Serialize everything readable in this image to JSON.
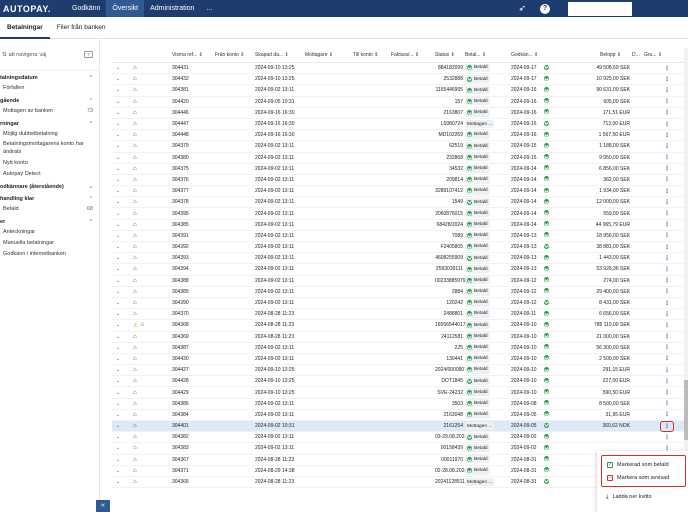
{
  "app": {
    "brand": "AUTOPAY."
  },
  "nav": {
    "tabs": [
      "Godkänn",
      "Översikt",
      "Administration",
      "..."
    ],
    "active_index": 1
  },
  "subnav": {
    "tabs": [
      "Betalningar",
      "Filer från banken"
    ],
    "active_index": 0
  },
  "sidebar": {
    "top_label": "att navigera",
    "top_suffix": "väj",
    "top_pill": "?",
    "sections": [
      {
        "title": "talningsdatum",
        "items": [
          {
            "label": "Förfallen",
            "count": ""
          }
        ]
      },
      {
        "title": "gående",
        "items": [
          {
            "label": "Mottagen av banken",
            "count": "73"
          }
        ]
      },
      {
        "title": "rningar",
        "items": [
          {
            "label": "Möjlig dubbelbetalning",
            "count": ""
          },
          {
            "label": "Betalningsmottagarens konto har ändrats",
            "count": ""
          },
          {
            "label": "Nytt konto",
            "count": ""
          },
          {
            "label": "Autopay Detect",
            "count": ""
          }
        ]
      },
      {
        "title": "odkännare (återstående)",
        "items": []
      },
      {
        "title": "handling klar",
        "items": [
          {
            "label": "Betald",
            "count": "68"
          }
        ]
      },
      {
        "title": "er",
        "items": [
          {
            "label": "Anteckningar",
            "count": ""
          },
          {
            "label": "Manuella betalningar",
            "count": ""
          },
          {
            "label": "Godkänn i internetbanken",
            "count": ""
          }
        ]
      }
    ],
    "collapse_glyph": "«"
  },
  "table": {
    "headers": [
      "Visma ref...",
      "Från konto",
      "Skapad da...",
      "Mottagare",
      "Till konto",
      "Faktura/...",
      "Status",
      "Betal...",
      "Godkän...",
      "Belopp",
      "D...",
      "Gru..."
    ],
    "rows": [
      {
        "ref": "304431",
        "created": "2024-09-10 13:25",
        "invoice": "884182099",
        "status": "Betald",
        "approved": "2024-09-17",
        "amount": "49 508,69 SEK"
      },
      {
        "ref": "304432",
        "created": "2024-09-10 13:25",
        "invoice": "2532888",
        "status": "Betald",
        "approved": "2024-09-17",
        "amount": "10 925,00 SEK"
      },
      {
        "ref": "304381",
        "created": "2024-09-02 13:11",
        "invoice": "1165446905",
        "status": "Betald",
        "approved": "2024-09-16",
        "amount": "90 631,00 SEK"
      },
      {
        "ref": "304420",
        "created": "2024-09-05 10:31",
        "invoice": "157",
        "status": "Betald",
        "approved": "2024-09-16",
        "amount": "605,00 SEK"
      },
      {
        "ref": "304446",
        "created": "2024-09-16 16:30",
        "invoice": "2163807",
        "status": "Betald",
        "approved": "2024-09-16",
        "amount": "171,51 EUR"
      },
      {
        "ref": "304447",
        "created": "2024-09-16 16:30",
        "invoice": "L5980724",
        "status": "Mottagen ...",
        "approved": "2024-09-16",
        "amount": "713,00 EUR"
      },
      {
        "ref": "304448",
        "created": "2024-09-16 16:30",
        "invoice": "MD102269",
        "status": "Betald",
        "approved": "2024-09-16",
        "amount": "1 567,50 EUR"
      },
      {
        "ref": "304379",
        "created": "2024-09-02 13:11",
        "invoice": "62519",
        "status": "Betald",
        "approved": "2024-09-15",
        "amount": "1 188,00 SEK"
      },
      {
        "ref": "304380",
        "created": "2024-09-02 13:11",
        "invoice": "232868",
        "status": "Betald",
        "approved": "2024-09-15",
        "amount": "9 950,00 SEK"
      },
      {
        "ref": "304375",
        "created": "2024-09-02 13:11",
        "invoice": "34532",
        "status": "Betald",
        "approved": "2024-09-14",
        "amount": "6 856,00 SEK"
      },
      {
        "ref": "304376",
        "created": "2024-09-02 13:11",
        "invoice": "209814",
        "status": "Betald",
        "approved": "2024-09-14",
        "amount": "362,00 SEK"
      },
      {
        "ref": "304377",
        "created": "2024-09-02 13:11",
        "invoice": "3289107412",
        "status": "Betald",
        "approved": "2024-09-14",
        "amount": "1 934,00 SEK"
      },
      {
        "ref": "304378",
        "created": "2024-09-02 13:11",
        "invoice": "1549",
        "status": "Betald",
        "approved": "2024-09-14",
        "amount": "12 000,00 SEK"
      },
      {
        "ref": "304395",
        "created": "2024-09-02 13:11",
        "invoice": "2060876015",
        "status": "Betald",
        "approved": "2024-09-14",
        "amount": "559,00 SEK"
      },
      {
        "ref": "304385",
        "created": "2024-09-02 13:11",
        "invoice": "68428/2024",
        "status": "Betald",
        "approved": "2024-09-14",
        "amount": "44 965,79 EUR"
      },
      {
        "ref": "304391",
        "created": "2024-09-02 13:11",
        "invoice": "7089",
        "status": "Betald",
        "approved": "2024-09-13",
        "amount": "18 956,00 SEK"
      },
      {
        "ref": "304392",
        "created": "2024-09-02 13:11",
        "invoice": "F2405805",
        "status": "Betald",
        "approved": "2024-09-13",
        "amount": "38 881,00 SEK"
      },
      {
        "ref": "304393",
        "created": "2024-09-02 13:11",
        "invoice": "4608255909",
        "status": "Betald",
        "approved": "2024-09-13",
        "amount": "1 443,00 SEK"
      },
      {
        "ref": "304394",
        "created": "2024-09-02 13:11",
        "invoice": "2593039111",
        "status": "Betald",
        "approved": "2024-09-13",
        "amount": "53 926,36 SEK"
      },
      {
        "ref": "304388",
        "created": "2024-09-02 13:11",
        "invoice": "00233885979",
        "status": "Betald",
        "approved": "2024-09-12",
        "amount": "274,00 SEK"
      },
      {
        "ref": "304389",
        "created": "2024-09-02 13:11",
        "invoice": "2884",
        "status": "Betald",
        "approved": "2024-09-12",
        "amount": "29 400,00 SEK"
      },
      {
        "ref": "304390",
        "created": "2024-09-02 13:11",
        "invoice": "120242",
        "status": "Betald",
        "approved": "2024-09-12",
        "amount": "8 431,00 SEK"
      },
      {
        "ref": "304370",
        "created": "2024-08-28 11:23",
        "invoice": "2488801",
        "status": "Betald",
        "approved": "2024-09-11",
        "amount": "6 656,00 SEK"
      },
      {
        "ref": "304368",
        "created": "2024-08-28 11:23",
        "invoice": "1655654401785",
        "status": "Betald",
        "approved": "2024-09-10",
        "amount": "785 119,00 SEK",
        "warn": true
      },
      {
        "ref": "304369",
        "created": "2024-08-28 11:23",
        "invoice": "24112581",
        "status": "Betald",
        "approved": "2024-09-10",
        "amount": "21 000,00 SEK"
      },
      {
        "ref": "304387",
        "created": "2024-09-02 13:11",
        "invoice": "225",
        "status": "Betald",
        "approved": "2024-09-10",
        "amount": "56 300,00 SEK"
      },
      {
        "ref": "304430",
        "created": "2024-09-02 13:11",
        "invoice": "130441",
        "status": "Betald",
        "approved": "2024-09-10",
        "amount": "2 500,00 SEK"
      },
      {
        "ref": "304427",
        "created": "2024-09-10 13:25",
        "invoice": "2024/0000907...",
        "status": "Betald",
        "approved": "2024-09-10",
        "amount": "291,15 EUR"
      },
      {
        "ref": "304428",
        "created": "2024-09-10 13:25",
        "invoice": "DOT1845",
        "status": "Betald",
        "approved": "2024-09-10",
        "amount": "227,00 EUR"
      },
      {
        "ref": "304429",
        "created": "2024-09-10 13:25",
        "invoice": "SVE-24232",
        "status": "Betald",
        "approved": "2024-09-10",
        "amount": "590,50 EUR"
      },
      {
        "ref": "304386",
        "created": "2024-09-02 13:11",
        "invoice": "3503",
        "status": "Betald",
        "approved": "2024-09-08",
        "amount": "8 500,00 SEK"
      },
      {
        "ref": "304384",
        "created": "2024-09-02 13:11",
        "invoice": "2163048",
        "status": "Betald",
        "approved": "2024-09-05",
        "amount": "31,95 EUR"
      },
      {
        "ref": "304401",
        "created": "2024-09-02 10:31",
        "invoice": "2161254",
        "status": "Mottagen ...",
        "approved": "2024-09-05",
        "amount": "360,62 NOK",
        "selected": true
      },
      {
        "ref": "304382",
        "created": "2024-09-02 13:11",
        "invoice": "03-29.08.2024.",
        "status": "Betald",
        "approved": "2024-09-02",
        "amount": ""
      },
      {
        "ref": "304383",
        "created": "2024-09-02 13:11",
        "invoice": "00158439",
        "status": "Betald",
        "approved": "2024-09-02",
        "amount": ""
      },
      {
        "ref": "304367",
        "created": "2024-08-28 11:23",
        "invoice": "00011970",
        "status": "Betald",
        "approved": "2024-08-31",
        "amount": ""
      },
      {
        "ref": "304371",
        "created": "2024-08-29 14:38",
        "invoice": "02-28.08.2024.",
        "status": "Betald",
        "approved": "2024-08-31",
        "amount": ""
      },
      {
        "ref": "304366",
        "created": "2024-08-28 11:23",
        "invoice": "202411285115",
        "status": "Mottagen ...",
        "approved": "2024-08-31",
        "amount": ""
      }
    ]
  },
  "context_menu": {
    "items": [
      "Markerad som betald",
      "Markera som avvisad"
    ],
    "download": "Ladda ner kvitto"
  },
  "colors": {
    "header_bg": "#1d3d6e",
    "active_tab": "#2f5a92",
    "ok_green": "#2e9e4a",
    "highlight_red": "#cc3322",
    "selected_row": "#dce9f6"
  }
}
